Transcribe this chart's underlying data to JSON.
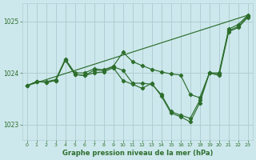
{
  "xlabel": "Graphe pression niveau de la mer (hPa)",
  "background_color": "#cde8ec",
  "line_color": "#2d6e2d",
  "grid_color": "#b0ced4",
  "ylim": [
    1022.7,
    1025.35
  ],
  "xlim": [
    -0.5,
    23.5
  ],
  "yticks": [
    1023,
    1024,
    1025
  ],
  "xticks": [
    0,
    1,
    2,
    3,
    4,
    5,
    6,
    7,
    8,
    9,
    10,
    11,
    12,
    13,
    14,
    15,
    16,
    17,
    18,
    19,
    20,
    21,
    22,
    23
  ],
  "line1_x": [
    0,
    1,
    2,
    3,
    4,
    5,
    6,
    7,
    8,
    9,
    10,
    11,
    12,
    13,
    14,
    15,
    16,
    17,
    18,
    19,
    20,
    21,
    22,
    23
  ],
  "line1_y": [
    1023.75,
    1023.83,
    1023.82,
    1023.85,
    1024.25,
    1023.97,
    1023.95,
    1024.0,
    1024.02,
    1024.1,
    1023.85,
    1023.78,
    1023.7,
    1023.8,
    1023.55,
    1023.22,
    1023.15,
    1023.05,
    1023.42,
    1024.0,
    1023.95,
    1024.8,
    1024.88,
    1025.08
  ],
  "line2_x": [
    0,
    1,
    2,
    3,
    4,
    5,
    6,
    7,
    8,
    9,
    10,
    11,
    12,
    13,
    14,
    15,
    16,
    17,
    18,
    19,
    20,
    21,
    22,
    23
  ],
  "line2_y": [
    1023.75,
    1023.83,
    1023.82,
    1023.85,
    1024.25,
    1023.97,
    1023.95,
    1024.05,
    1024.05,
    1024.12,
    1024.05,
    1023.8,
    1023.8,
    1023.78,
    1023.58,
    1023.25,
    1023.18,
    1023.12,
    1023.47,
    1024.0,
    1023.98,
    1024.82,
    1024.9,
    1025.1
  ],
  "line3_x": [
    0,
    1,
    2,
    3,
    4,
    5,
    6,
    7,
    8,
    9,
    10,
    11,
    12,
    13,
    14,
    15,
    16,
    17,
    18,
    19,
    20,
    21,
    22,
    23
  ],
  "line3_y": [
    1023.75,
    1023.83,
    1023.83,
    1023.87,
    1024.27,
    1024.0,
    1024.0,
    1024.08,
    1024.06,
    1024.13,
    1024.4,
    1024.22,
    1024.14,
    1024.07,
    1024.02,
    1023.98,
    1023.96,
    1023.58,
    1023.52,
    1024.0,
    1024.0,
    1024.85,
    1024.94,
    1025.12
  ],
  "line4_x": [
    0,
    23
  ],
  "line4_y": [
    1023.75,
    1025.12
  ]
}
